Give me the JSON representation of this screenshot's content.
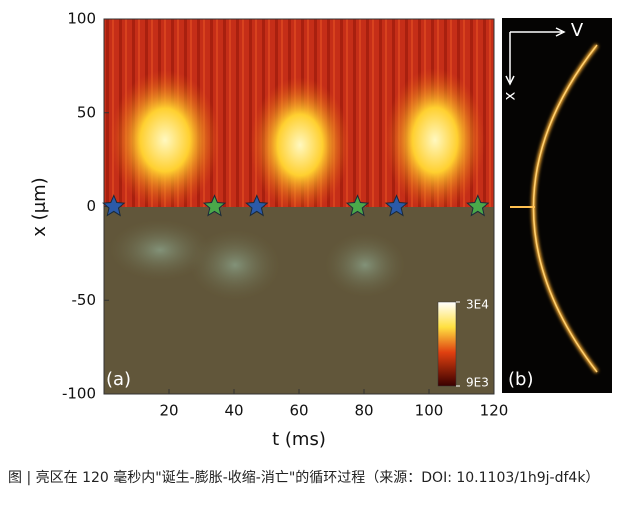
{
  "chart_data": {
    "type": "heatmap",
    "panel_label": "(a)",
    "xlabel": "t (ms)",
    "ylabel": "x (μm)",
    "xlim": [
      0,
      120
    ],
    "ylim": [
      -100,
      100
    ],
    "xticks": [
      20,
      40,
      60,
      80,
      100,
      120
    ],
    "yticks": [
      -100,
      -50,
      0,
      50,
      100
    ],
    "colorbar": {
      "lim": [
        9000,
        30000
      ],
      "ticks": [
        {
          "value": 9000,
          "label": "9E3"
        },
        {
          "value": 30000,
          "label": "3E4"
        }
      ]
    },
    "series": [
      {
        "color": "#2b5aa8",
        "x": [
          3,
          47,
          90
        ],
        "values": [
          0,
          0,
          0
        ]
      },
      {
        "color": "#4aa84a",
        "x": [
          34,
          78,
          115
        ],
        "values": [
          0,
          0,
          0
        ]
      }
    ]
  },
  "panel_b": {
    "label": "(b)",
    "axis_labels": [
      "V",
      "x"
    ]
  },
  "caption": "图 | 亮区在 120 毫秒内\"诞生-膨胀-收缩-消亡\"的循环过程（来源：DOI: 10.1103/1h9j-df4k）"
}
